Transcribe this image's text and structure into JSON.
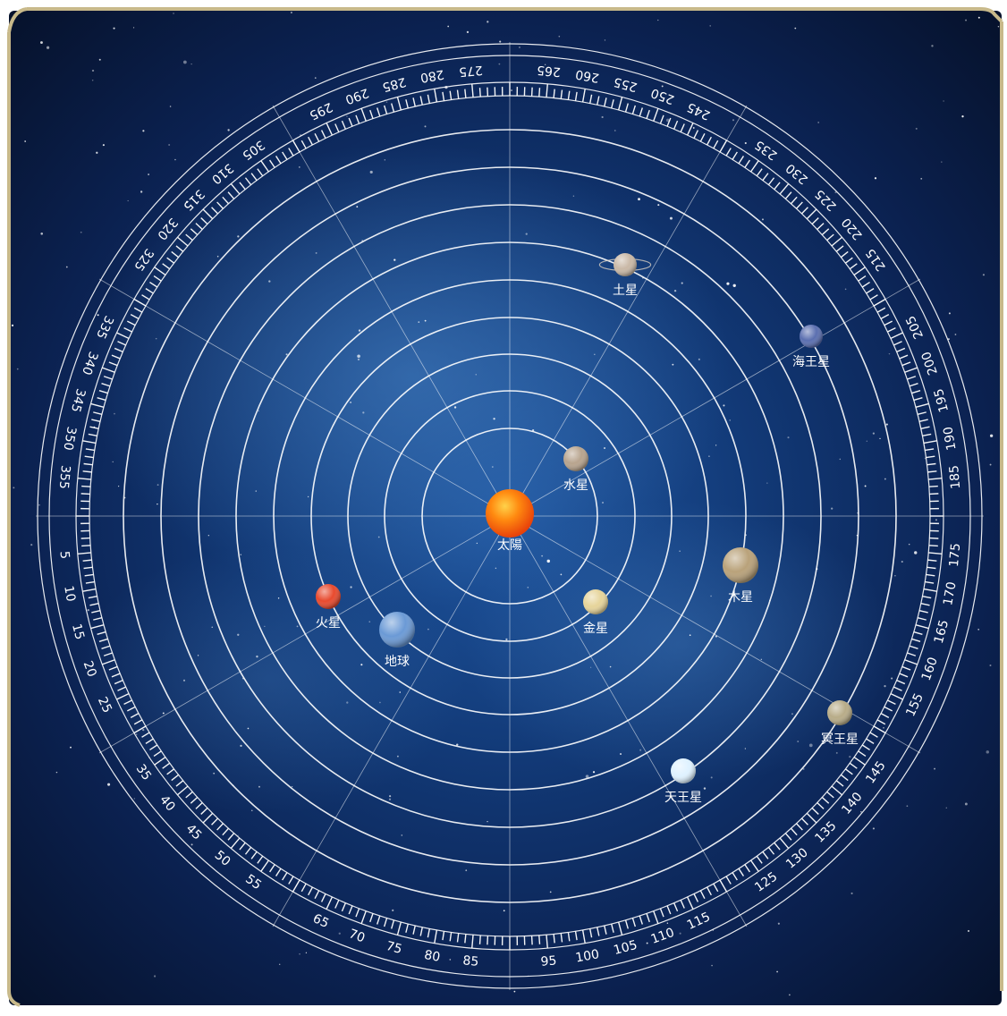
{
  "colors": {
    "frame": "#c8b98a",
    "ring": "#ffffff",
    "space_dark": "#071530",
    "space_mid": "#133a78"
  },
  "center": {
    "label": "太陽"
  },
  "degree_labels": [
    "5",
    "10",
    "15",
    "20",
    "25",
    "35",
    "40",
    "45",
    "50",
    "55",
    "65",
    "70",
    "75",
    "80",
    "85",
    "95",
    "100",
    "105",
    "110",
    "115",
    "125",
    "130",
    "135",
    "140",
    "145",
    "155",
    "160",
    "165",
    "170",
    "175",
    "185",
    "190",
    "195",
    "200",
    "205",
    "215",
    "220",
    "225",
    "230",
    "235",
    "245",
    "250",
    "255",
    "260",
    "265",
    "275",
    "280",
    "285",
    "290",
    "295",
    "305",
    "310",
    "315",
    "320",
    "325",
    "335",
    "340",
    "345",
    "350",
    "355"
  ],
  "planets": [
    {
      "id": "mercury",
      "label": "水星",
      "color": "#b8a48e",
      "icon": "mercury-icon"
    },
    {
      "id": "venus",
      "label": "金星",
      "color": "#e6d49a",
      "icon": "venus-icon"
    },
    {
      "id": "earth",
      "label": "地球",
      "color": "#6b9ad6",
      "icon": "earth-icon"
    },
    {
      "id": "mars",
      "label": "火星",
      "color": "#e84a2e",
      "icon": "mars-icon"
    },
    {
      "id": "jupiter",
      "label": "木星",
      "color": "#b9a27a",
      "icon": "jupiter-icon"
    },
    {
      "id": "saturn",
      "label": "土星",
      "color": "#c9b8a6",
      "icon": "saturn-icon"
    },
    {
      "id": "uranus",
      "label": "天王星",
      "color": "#dff2ff",
      "icon": "uranus-icon"
    },
    {
      "id": "neptune",
      "label": "海王星",
      "color": "#5b6fb0",
      "icon": "neptune-icon"
    },
    {
      "id": "pluto",
      "label": "冥王星",
      "color": "#b8ac88",
      "icon": "pluto-icon"
    }
  ]
}
